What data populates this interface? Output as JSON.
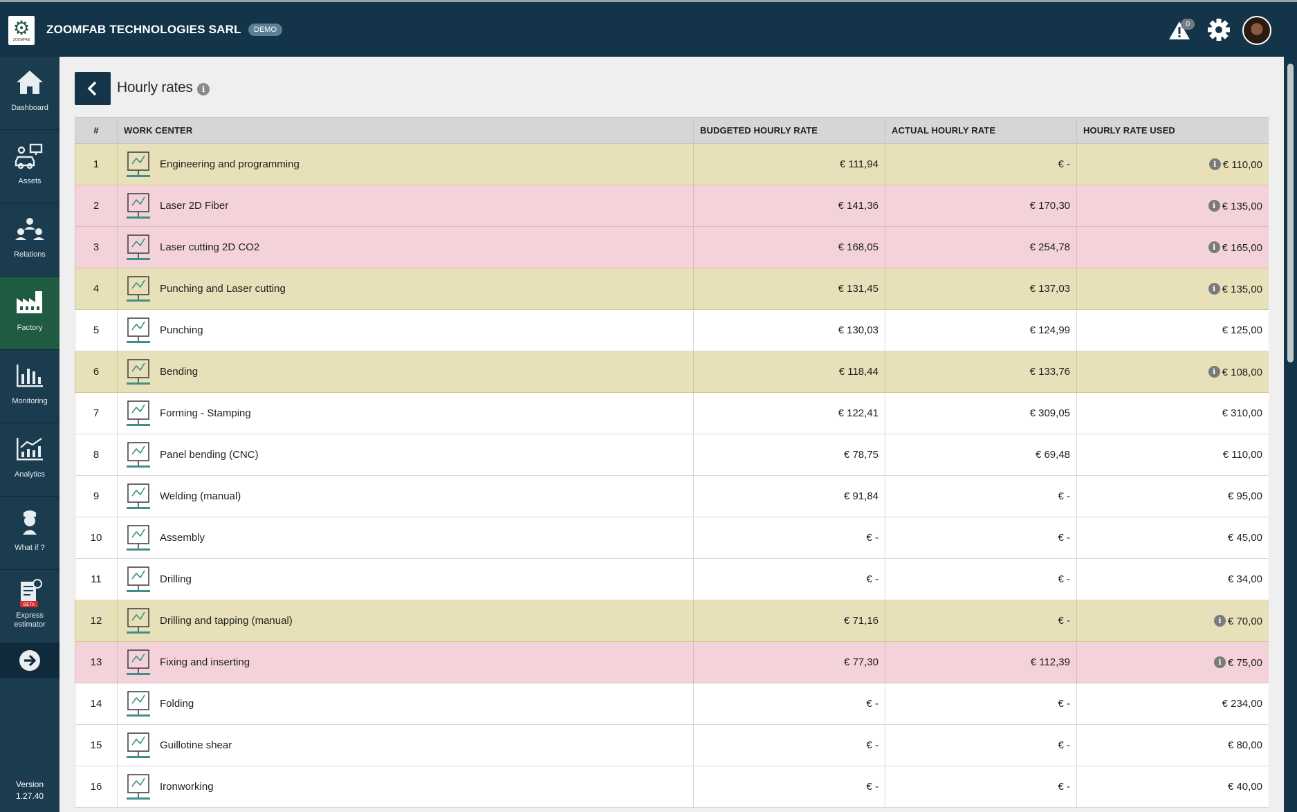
{
  "app": {
    "company": "ZOOMFAB TECHNOLOGIES SARL",
    "badge": "DEMO",
    "logo_text": "ZOOMFAB",
    "notification_count": "0"
  },
  "sidebar": {
    "items": [
      {
        "label": "Dashboard",
        "icon": "home-icon"
      },
      {
        "label": "Assets",
        "icon": "machines-icon"
      },
      {
        "label": "Relations",
        "icon": "people-network-icon"
      },
      {
        "label": "Factory",
        "icon": "factory-icon",
        "active": true
      },
      {
        "label": "Monitoring",
        "icon": "bar-chart-icon"
      },
      {
        "label": "Analytics",
        "icon": "line-chart-icon"
      },
      {
        "label": "What if ?",
        "icon": "thinking-person-icon"
      },
      {
        "label": "Express estimator",
        "icon": "estimator-icon",
        "badge": "BETA"
      }
    ],
    "version_label": "Version",
    "version_number": "1.27.40"
  },
  "page": {
    "title": "Hourly rates"
  },
  "table": {
    "headers": [
      "#",
      "WORK CENTER",
      "BUDGETED HOURLY RATE",
      "ACTUAL HOURLY RATE",
      "HOURLY RATE USED"
    ],
    "rows": [
      {
        "num": "1",
        "name": "Engineering and programming",
        "budgeted": "€ 111,94",
        "actual": "€ -",
        "used": "€ 110,00",
        "info": true,
        "highlight": "yellow",
        "icon": "workstation-icon"
      },
      {
        "num": "2",
        "name": "Laser 2D Fiber",
        "budgeted": "€ 141,36",
        "actual": "€ 170,30",
        "used": "€ 135,00",
        "info": true,
        "highlight": "red",
        "icon": "laser-fiber-icon"
      },
      {
        "num": "3",
        "name": "Laser cutting 2D CO2",
        "budgeted": "€ 168,05",
        "actual": "€ 254,78",
        "used": "€ 165,00",
        "info": true,
        "highlight": "red",
        "icon": "laser-co2-icon"
      },
      {
        "num": "4",
        "name": "Punching and Laser cutting",
        "budgeted": "€ 131,45",
        "actual": "€ 137,03",
        "used": "€ 135,00",
        "info": true,
        "highlight": "yellow",
        "icon": "punch-laser-icon"
      },
      {
        "num": "5",
        "name": "Punching",
        "budgeted": "€ 130,03",
        "actual": "€ 124,99",
        "used": "€ 125,00",
        "info": false,
        "highlight": "",
        "icon": "punching-icon"
      },
      {
        "num": "6",
        "name": "Bending",
        "budgeted": "€ 118,44",
        "actual": "€ 133,76",
        "used": "€ 108,00",
        "info": true,
        "highlight": "yellow",
        "icon": "cnc-bending-icon"
      },
      {
        "num": "7",
        "name": "Forming - Stamping",
        "budgeted": "€ 122,41",
        "actual": "€ 309,05",
        "used": "€ 310,00",
        "info": false,
        "highlight": "",
        "icon": "cnc-forming-icon"
      },
      {
        "num": "8",
        "name": "Panel bending (CNC)",
        "budgeted": "€ 78,75",
        "actual": "€ 69,48",
        "used": "€ 110,00",
        "info": false,
        "highlight": "",
        "icon": "panel-bending-icon"
      },
      {
        "num": "9",
        "name": "Welding (manual)",
        "budgeted": "€ 91,84",
        "actual": "€ -",
        "used": "€ 95,00",
        "info": false,
        "highlight": "",
        "icon": "welding-icon"
      },
      {
        "num": "10",
        "name": "Assembly",
        "budgeted": "€ -",
        "actual": "€ -",
        "used": "€ 45,00",
        "info": false,
        "highlight": "",
        "icon": "tools-icon"
      },
      {
        "num": "11",
        "name": "Drilling",
        "budgeted": "€ -",
        "actual": "€ -",
        "used": "€ 34,00",
        "info": false,
        "highlight": "",
        "icon": "drill-icon"
      },
      {
        "num": "12",
        "name": "Drilling and tapping (manual)",
        "budgeted": "€ 71,16",
        "actual": "€ -",
        "used": "€ 70,00",
        "info": true,
        "highlight": "yellow",
        "icon": "worker-drilling-icon"
      },
      {
        "num": "13",
        "name": "Fixing and inserting",
        "budgeted": "€ 77,30",
        "actual": "€ 112,39",
        "used": "€ 75,00",
        "info": true,
        "highlight": "red",
        "icon": "worker-fixing-icon"
      },
      {
        "num": "14",
        "name": "Folding",
        "budgeted": "€ -",
        "actual": "€ -",
        "used": "€ 234,00",
        "info": false,
        "highlight": "",
        "icon": "folding-icon"
      },
      {
        "num": "15",
        "name": "Guillotine shear",
        "budgeted": "€ -",
        "actual": "€ -",
        "used": "€ 80,00",
        "info": false,
        "highlight": "",
        "icon": "guillotine-icon"
      },
      {
        "num": "16",
        "name": "Ironworking",
        "budgeted": "€ -",
        "actual": "€ -",
        "used": "€ 40,00",
        "info": false,
        "highlight": "",
        "icon": "ironworker-icon"
      }
    ]
  },
  "colors": {
    "topbar": "#143549",
    "sidebar": "#1b3b4f",
    "active_nav": "#1f5a43",
    "row_yellow": "#e8e0b8",
    "row_red": "#f3d3d9",
    "icon_teal": "#3f8f86"
  }
}
